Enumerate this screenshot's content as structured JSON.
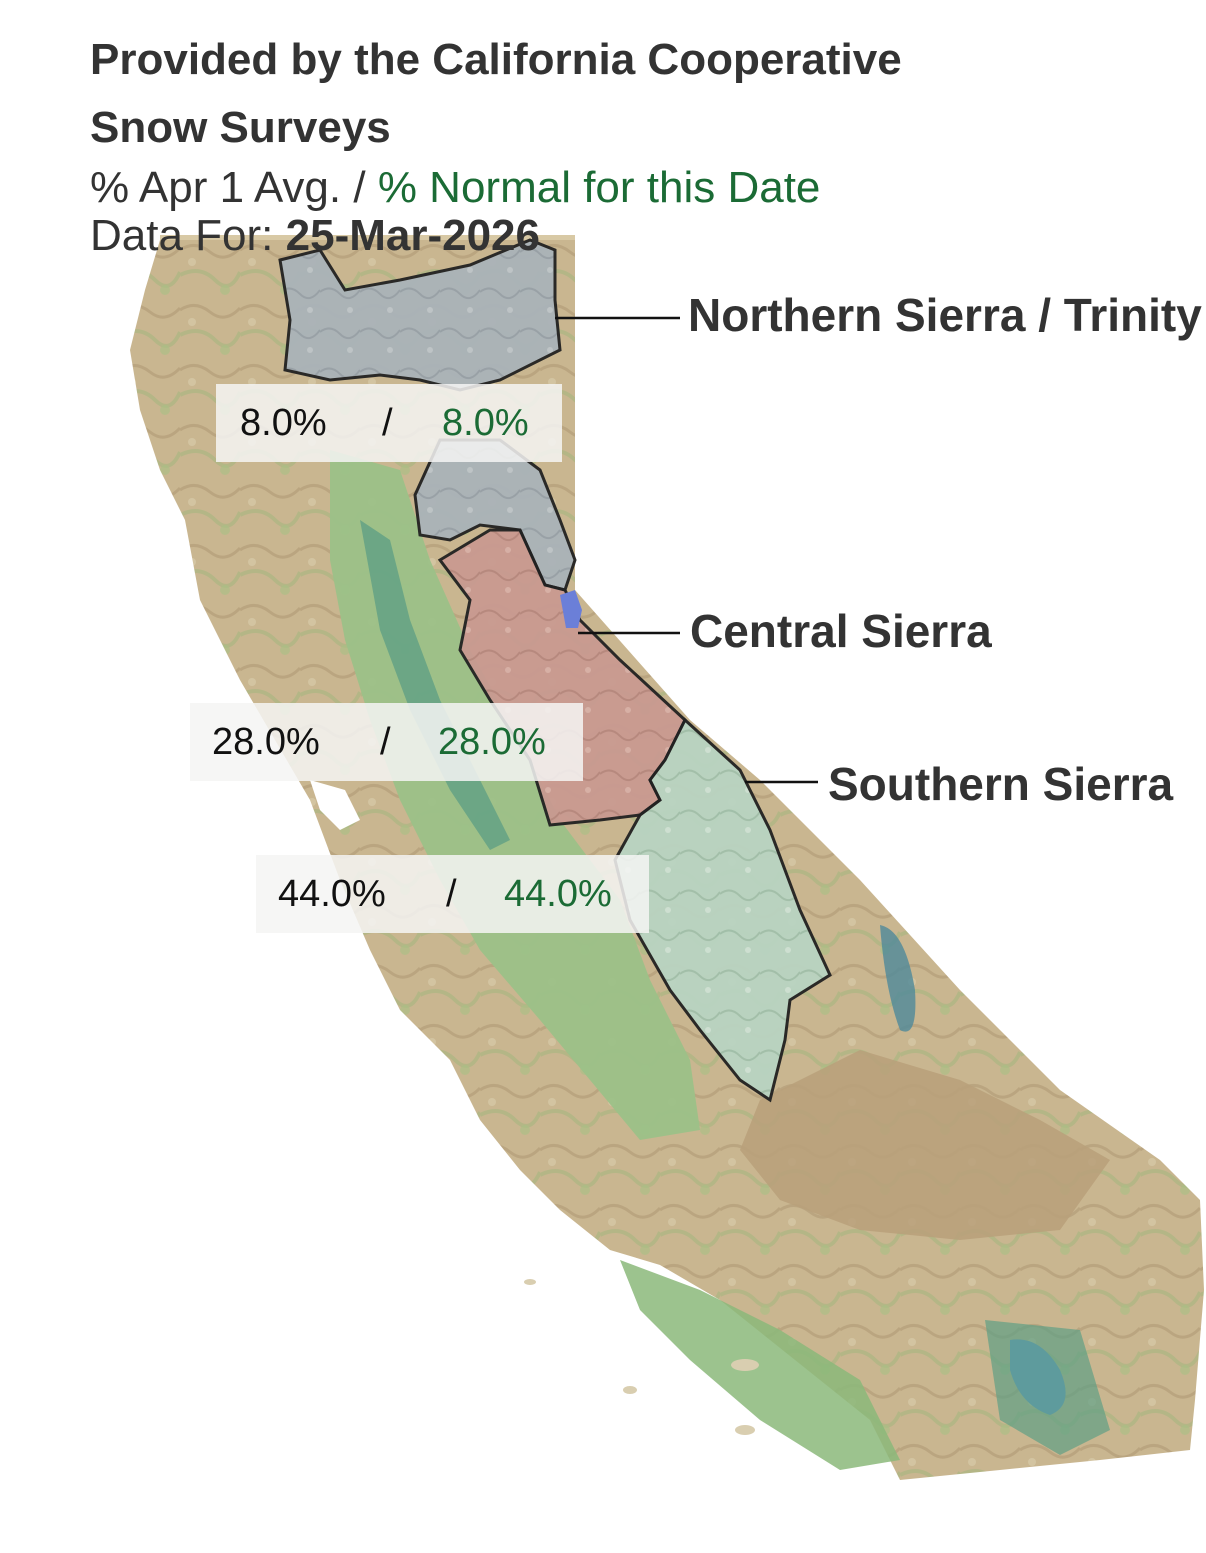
{
  "header": {
    "title_line1": "Provided by the California Cooperative",
    "title_line2": "Snow Surveys",
    "legend_apr": " % Apr 1 Avg. /",
    "legend_normal": " % Normal for this Date",
    "date_label": "Data For: ",
    "date_value": "25-Mar-2026"
  },
  "colors": {
    "normal_text": "#1b6b35",
    "label_text": "#333333",
    "northern_region_fill": "#a9b3bb",
    "central_region_fill": "#c9968e",
    "southern_region_fill": "#b7d3c0",
    "terrain_tan": "#c7b48e",
    "terrain_green": "#8fb47a",
    "valley_green": "#9cc188",
    "water_blue": "#5b8fd6"
  },
  "regions": [
    {
      "name": "Northern Sierra / Trinity",
      "apr1_avg_pct": "8.0%",
      "separator": "/",
      "normal_for_date_pct": "8.0%"
    },
    {
      "name": "Central Sierra",
      "apr1_avg_pct": "28.0%",
      "separator": "/",
      "normal_for_date_pct": "28.0%"
    },
    {
      "name": "Southern Sierra",
      "apr1_avg_pct": "44.0%",
      "separator": "/",
      "normal_for_date_pct": "44.0%"
    }
  ]
}
